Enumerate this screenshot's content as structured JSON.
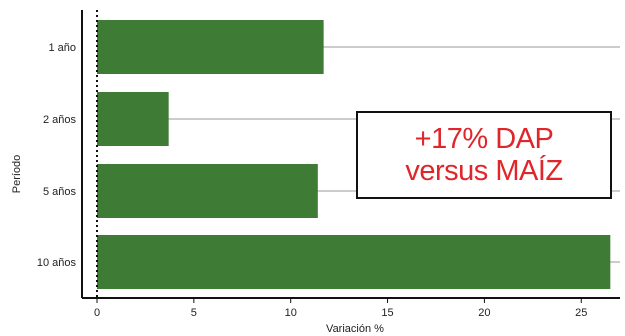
{
  "chart_data": {
    "type": "bar",
    "orientation": "horizontal",
    "categories": [
      "1 año",
      "2 años",
      "5 años",
      "10 años"
    ],
    "values": [
      11.7,
      3.7,
      11.4,
      26.5
    ],
    "xlabel": "Variación %",
    "ylabel": "Período",
    "xlim": [
      0,
      27
    ],
    "xticks": [
      0,
      5,
      10,
      15,
      20,
      25
    ],
    "grid": "horizontal lines at each category",
    "colors": {
      "bar": "#3e7b35",
      "callout_text": "#e0262b"
    }
  },
  "callout": {
    "line1": "+17% DAP",
    "line2": "versus MAÍZ"
  }
}
